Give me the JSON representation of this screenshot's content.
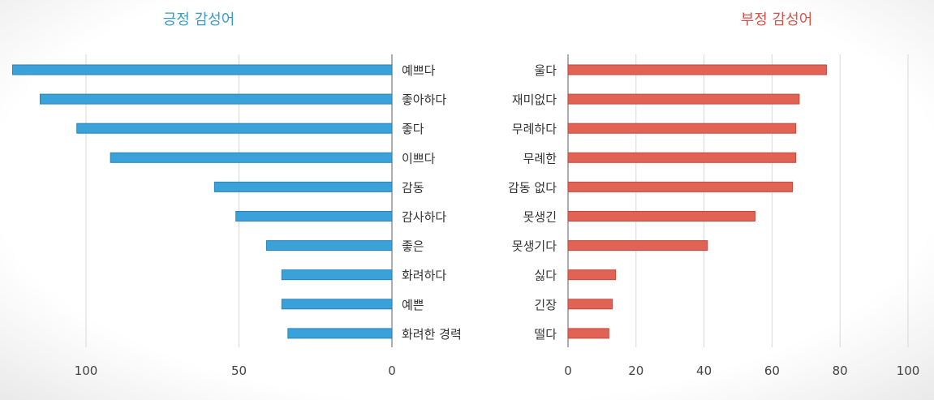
{
  "chart_data": [
    {
      "type": "bar",
      "orientation": "horizontal",
      "direction": "right-to-left",
      "title": "긍정 감성어",
      "color": "#3aa2d8",
      "stroke": "#2a82b8",
      "title_color": "#3a9bc8",
      "categories": [
        "예쁘다",
        "좋아하다",
        "좋다",
        "이쁘다",
        "감동",
        "감사하다",
        "좋은",
        "화려하다",
        "예쁜",
        "화려한 경력"
      ],
      "values": [
        124,
        115,
        103,
        92,
        58,
        51,
        41,
        36,
        36,
        34
      ],
      "xlim": [
        0,
        128
      ],
      "xticks": [
        0,
        50,
        100
      ],
      "xtick_labels": [
        "0",
        "50",
        "100"
      ],
      "gridlines": [
        0,
        50,
        100
      ]
    },
    {
      "type": "bar",
      "orientation": "horizontal",
      "direction": "left-to-right",
      "title": "부정 감성어",
      "color": "#e06355",
      "stroke": "#c24a3d",
      "title_color": "#d9534a",
      "categories": [
        "울다",
        "재미없다",
        "무례하다",
        "무례한",
        "감동 없다",
        "못생긴",
        "못생기다",
        "싫다",
        "긴장",
        "떨다"
      ],
      "values": [
        76,
        68,
        67,
        67,
        66,
        55,
        41,
        14,
        13,
        12
      ],
      "xlim": [
        0,
        100
      ],
      "xticks": [
        0,
        20,
        40,
        60,
        80,
        100
      ],
      "xtick_labels": [
        "0",
        "20",
        "40",
        "60",
        "80",
        "100"
      ],
      "gridlines": [
        0,
        20,
        40,
        60,
        80,
        100
      ]
    }
  ]
}
